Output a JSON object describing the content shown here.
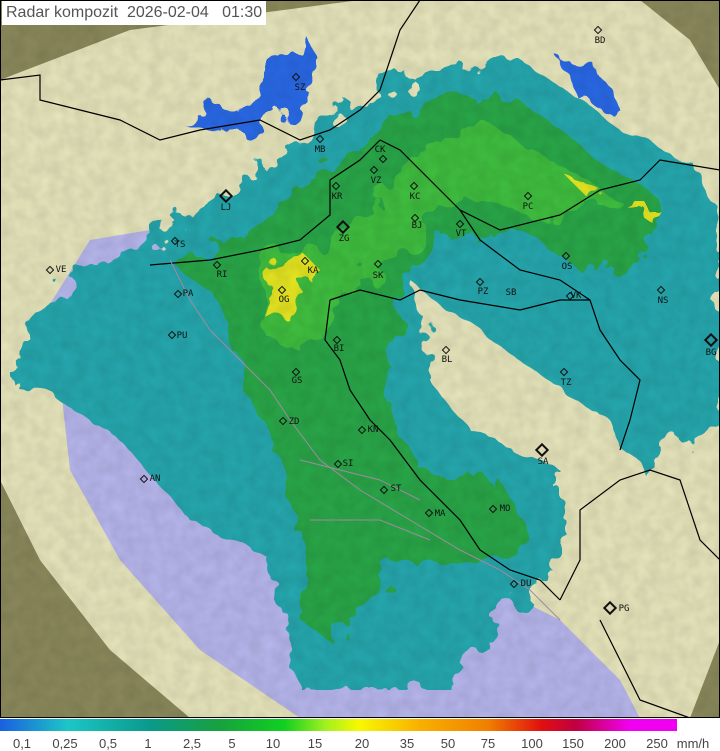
{
  "title": "Radar kompozit  2026-02-04   01:30",
  "legend": {
    "unit": "mm/h",
    "ticks": [
      "0,1",
      "0,25",
      "0,5",
      "1",
      "2,5",
      "5",
      "10",
      "15",
      "20",
      "35",
      "50",
      "75",
      "100",
      "150",
      "200",
      "250"
    ]
  },
  "colors": {
    "outside": "#8c8a5c",
    "coverage": "#e9e7bd",
    "sea": "#b8b8ef",
    "rain_light": "#27a9b0",
    "rain_mid": "#2aa848",
    "rain_heavy": "#e8e820",
    "rain_low": "#2b6ae8"
  },
  "cities": [
    {
      "code": "BD",
      "big": false
    },
    {
      "code": "SZ",
      "big": false
    },
    {
      "code": "MB",
      "big": false
    },
    {
      "code": "CK",
      "big": false
    },
    {
      "code": "VZ",
      "big": false
    },
    {
      "code": "KR",
      "big": false
    },
    {
      "code": "KC",
      "big": false
    },
    {
      "code": "LJ",
      "big": true
    },
    {
      "code": "PC",
      "big": false
    },
    {
      "code": "BJ",
      "big": false
    },
    {
      "code": "VT",
      "big": false
    },
    {
      "code": "ZG",
      "big": true
    },
    {
      "code": "TS",
      "big": false
    },
    {
      "code": "VE",
      "big": false
    },
    {
      "code": "RI",
      "big": false
    },
    {
      "code": "KA",
      "big": false
    },
    {
      "code": "SK",
      "big": false
    },
    {
      "code": "OS",
      "big": false
    },
    {
      "code": "PZ",
      "big": false
    },
    {
      "code": "SB",
      "big": false
    },
    {
      "code": "PA",
      "big": false
    },
    {
      "code": "VK",
      "big": false
    },
    {
      "code": "NS",
      "big": false
    },
    {
      "code": "OG",
      "big": false
    },
    {
      "code": "PU",
      "big": false
    },
    {
      "code": "BI",
      "big": false
    },
    {
      "code": "BL",
      "big": false
    },
    {
      "code": "BG",
      "big": true
    },
    {
      "code": "GS",
      "big": false
    },
    {
      "code": "TZ",
      "big": false
    },
    {
      "code": "ZD",
      "big": false
    },
    {
      "code": "KN",
      "big": false
    },
    {
      "code": "SA",
      "big": true
    },
    {
      "code": "AN",
      "big": false
    },
    {
      "code": "SI",
      "big": false
    },
    {
      "code": "ST",
      "big": false
    },
    {
      "code": "MA",
      "big": false
    },
    {
      "code": "MO",
      "big": false
    },
    {
      "code": "DU",
      "big": false
    },
    {
      "code": "PG",
      "big": true
    }
  ]
}
